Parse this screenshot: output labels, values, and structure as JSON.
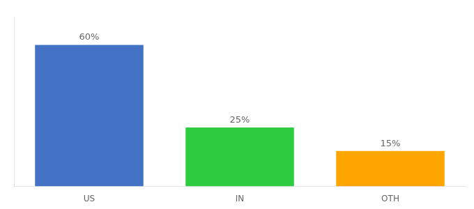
{
  "chart_data": {
    "type": "bar",
    "categories": [
      "US",
      "IN",
      "OTH"
    ],
    "values": [
      60,
      25,
      15
    ],
    "value_labels": [
      "60%",
      "25%",
      "15%"
    ],
    "data_labels": true,
    "colors": [
      "#4472C4",
      "#2ECC40",
      "#FFA500"
    ],
    "ylim": [
      0,
      72
    ],
    "tick_labels": "x",
    "grid": false
  }
}
